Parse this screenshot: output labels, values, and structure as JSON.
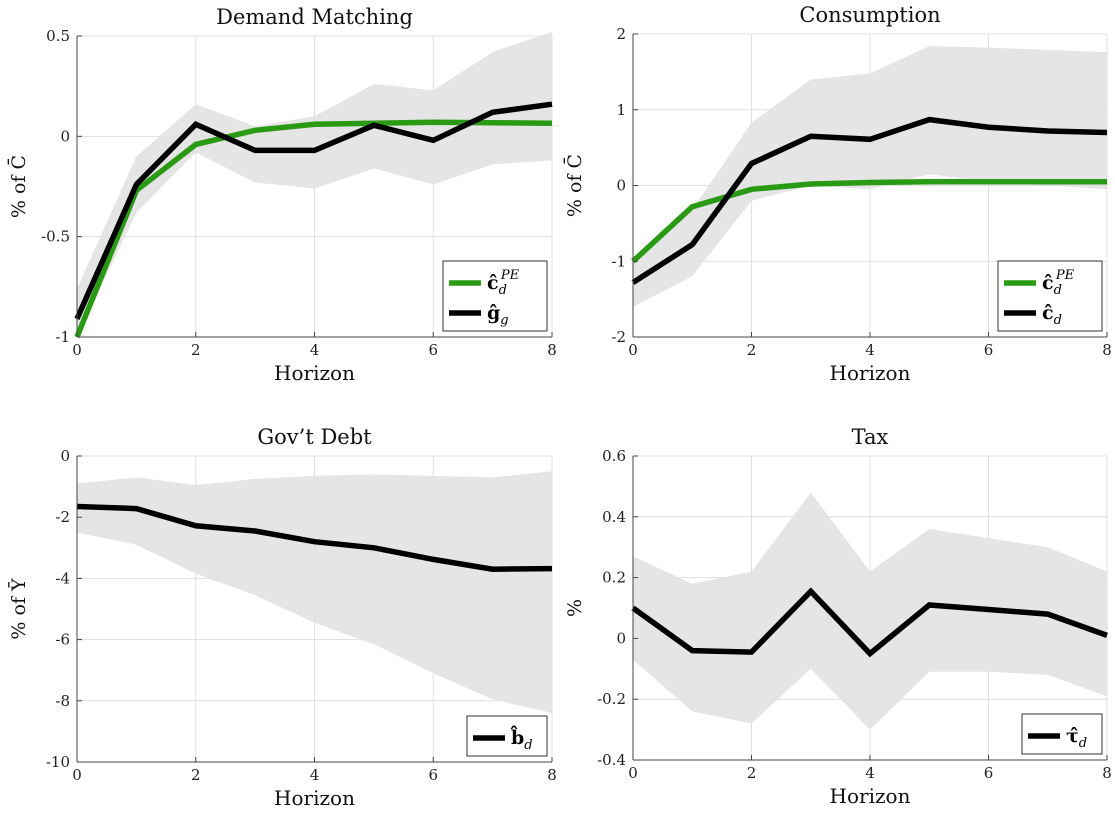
{
  "chart_data": [
    {
      "type": "line",
      "title": "Demand Matching",
      "xlabel": "Horizon",
      "ylabel": "% of C̄",
      "xlim": [
        0,
        8
      ],
      "ylim": [
        -1,
        0.5
      ],
      "xticks": [
        0,
        2,
        4,
        6,
        8
      ],
      "yticks": [
        -1,
        -0.5,
        0,
        0.5
      ],
      "ytick_labels": [
        "-1",
        "-0.5",
        "0",
        "0.5"
      ],
      "grid": true,
      "legend": "bottom-right",
      "x": [
        0,
        1,
        2,
        3,
        4,
        5,
        6,
        7,
        8
      ],
      "band": {
        "color": "#e5e5e5",
        "lower": [
          -1.0,
          -0.38,
          -0.08,
          -0.23,
          -0.26,
          -0.16,
          -0.24,
          -0.14,
          -0.12
        ],
        "upper": [
          -0.76,
          -0.1,
          0.16,
          0.05,
          0.1,
          0.26,
          0.23,
          0.42,
          0.52
        ]
      },
      "series": [
        {
          "name": "ĉd PE",
          "label_main": "ĉ",
          "label_sub": "d",
          "label_sup": "PE",
          "color": "#2a9a14",
          "values": [
            -1.0,
            -0.27,
            -0.04,
            0.03,
            0.06,
            0.065,
            0.07,
            0.068,
            0.065
          ]
        },
        {
          "name": "ĝg",
          "label_main": "ĝ",
          "label_sub": "g",
          "label_sup": "",
          "color": "#000000",
          "values": [
            -0.91,
            -0.24,
            0.06,
            -0.07,
            -0.07,
            0.055,
            -0.02,
            0.12,
            0.16
          ]
        }
      ]
    },
    {
      "type": "line",
      "title": "Consumption",
      "xlabel": "Horizon",
      "ylabel": "% of C̄",
      "xlim": [
        0,
        8
      ],
      "ylim": [
        -2,
        2
      ],
      "xticks": [
        0,
        2,
        4,
        6,
        8
      ],
      "yticks": [
        -2,
        -1,
        0,
        1,
        2
      ],
      "ytick_labels": [
        "-2",
        "-1",
        "0",
        "1",
        "2"
      ],
      "grid": true,
      "legend": "bottom-right",
      "x": [
        0,
        1,
        2,
        3,
        4,
        5,
        6,
        7,
        8
      ],
      "band": {
        "color": "#e5e5e5",
        "lower": [
          -1.6,
          -1.2,
          -0.2,
          0.0,
          -0.05,
          0.15,
          0.05,
          0.0,
          -0.05
        ],
        "upper": [
          -1.0,
          -0.32,
          0.83,
          1.4,
          1.48,
          1.84,
          1.82,
          1.79,
          1.76
        ]
      },
      "series": [
        {
          "name": "ĉd PE",
          "label_main": "ĉ",
          "label_sub": "d",
          "label_sup": "PE",
          "color": "#2a9a14",
          "values": [
            -1.0,
            -0.28,
            -0.05,
            0.02,
            0.04,
            0.05,
            0.05,
            0.05,
            0.05
          ]
        },
        {
          "name": "ĉd",
          "label_main": "ĉ",
          "label_sub": "d",
          "label_sup": "",
          "color": "#000000",
          "values": [
            -1.28,
            -0.78,
            0.29,
            0.65,
            0.61,
            0.87,
            0.77,
            0.72,
            0.7
          ]
        }
      ]
    },
    {
      "type": "line",
      "title": "Gov’t Debt",
      "xlabel": "Horizon",
      "ylabel": "% of Ȳ",
      "xlim": [
        0,
        8
      ],
      "ylim": [
        -10,
        0
      ],
      "xticks": [
        0,
        2,
        4,
        6,
        8
      ],
      "yticks": [
        -10,
        -8,
        -6,
        -4,
        -2,
        0
      ],
      "ytick_labels": [
        "-10",
        "-8",
        "-6",
        "-4",
        "-2",
        "0"
      ],
      "grid": true,
      "legend": "bottom-right",
      "x": [
        0,
        1,
        2,
        3,
        4,
        5,
        6,
        7,
        8
      ],
      "band": {
        "color": "#e5e5e5",
        "lower": [
          -2.5,
          -2.9,
          -3.85,
          -4.55,
          -5.45,
          -6.15,
          -7.1,
          -7.95,
          -8.4
        ],
        "upper": [
          -0.9,
          -0.7,
          -0.95,
          -0.75,
          -0.65,
          -0.6,
          -0.65,
          -0.7,
          -0.5
        ]
      },
      "series": [
        {
          "name": "b̂d",
          "label_main": "b̂",
          "label_sub": "d",
          "label_sup": "",
          "color": "#000000",
          "values": [
            -1.65,
            -1.72,
            -2.28,
            -2.45,
            -2.8,
            -3.0,
            -3.38,
            -3.7,
            -3.68
          ]
        }
      ]
    },
    {
      "type": "line",
      "title": "Tax",
      "xlabel": "Horizon",
      "ylabel": "%",
      "xlim": [
        0,
        8
      ],
      "ylim": [
        -0.4,
        0.6
      ],
      "xticks": [
        0,
        2,
        4,
        6,
        8
      ],
      "yticks": [
        -0.4,
        -0.2,
        0,
        0.2,
        0.4,
        0.6
      ],
      "ytick_labels": [
        "-0.4",
        "-0.2",
        "0",
        "0.2",
        "0.4",
        "0.6"
      ],
      "grid": true,
      "legend": "bottom-right",
      "x": [
        0,
        1,
        2,
        3,
        4,
        5,
        6,
        7,
        8
      ],
      "band": {
        "color": "#e5e5e5",
        "lower": [
          -0.07,
          -0.24,
          -0.28,
          -0.1,
          -0.3,
          -0.11,
          -0.11,
          -0.12,
          -0.19
        ],
        "upper": [
          0.27,
          0.18,
          0.22,
          0.48,
          0.22,
          0.36,
          0.33,
          0.3,
          0.22
        ]
      },
      "series": [
        {
          "name": "τ̂d",
          "label_main": "τ̂",
          "label_sub": "d",
          "label_sup": "",
          "color": "#000000",
          "values": [
            0.1,
            -0.04,
            -0.045,
            0.155,
            -0.05,
            0.11,
            0.095,
            0.08,
            0.01
          ]
        }
      ]
    }
  ]
}
